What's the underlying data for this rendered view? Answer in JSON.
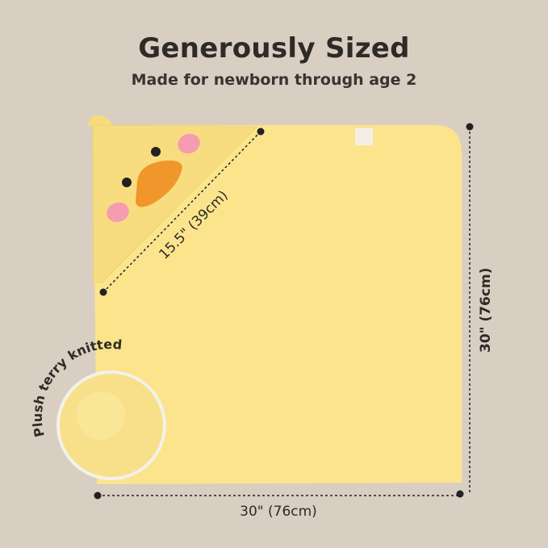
{
  "header": {
    "title": "Generously Sized",
    "subtitle": "Made for newborn through age 2"
  },
  "dimensions": {
    "hood_diagonal": "15.5\" (39cm)",
    "height": "30\" (76cm)",
    "width": "30\" (76cm)"
  },
  "callout": {
    "label": "Plush terry knitted"
  },
  "colors": {
    "background": "#d8cec2",
    "towel": "#fbe48c",
    "text": "#2e2a27",
    "beak": "#f0962a",
    "cheek": "#f59cb0"
  }
}
